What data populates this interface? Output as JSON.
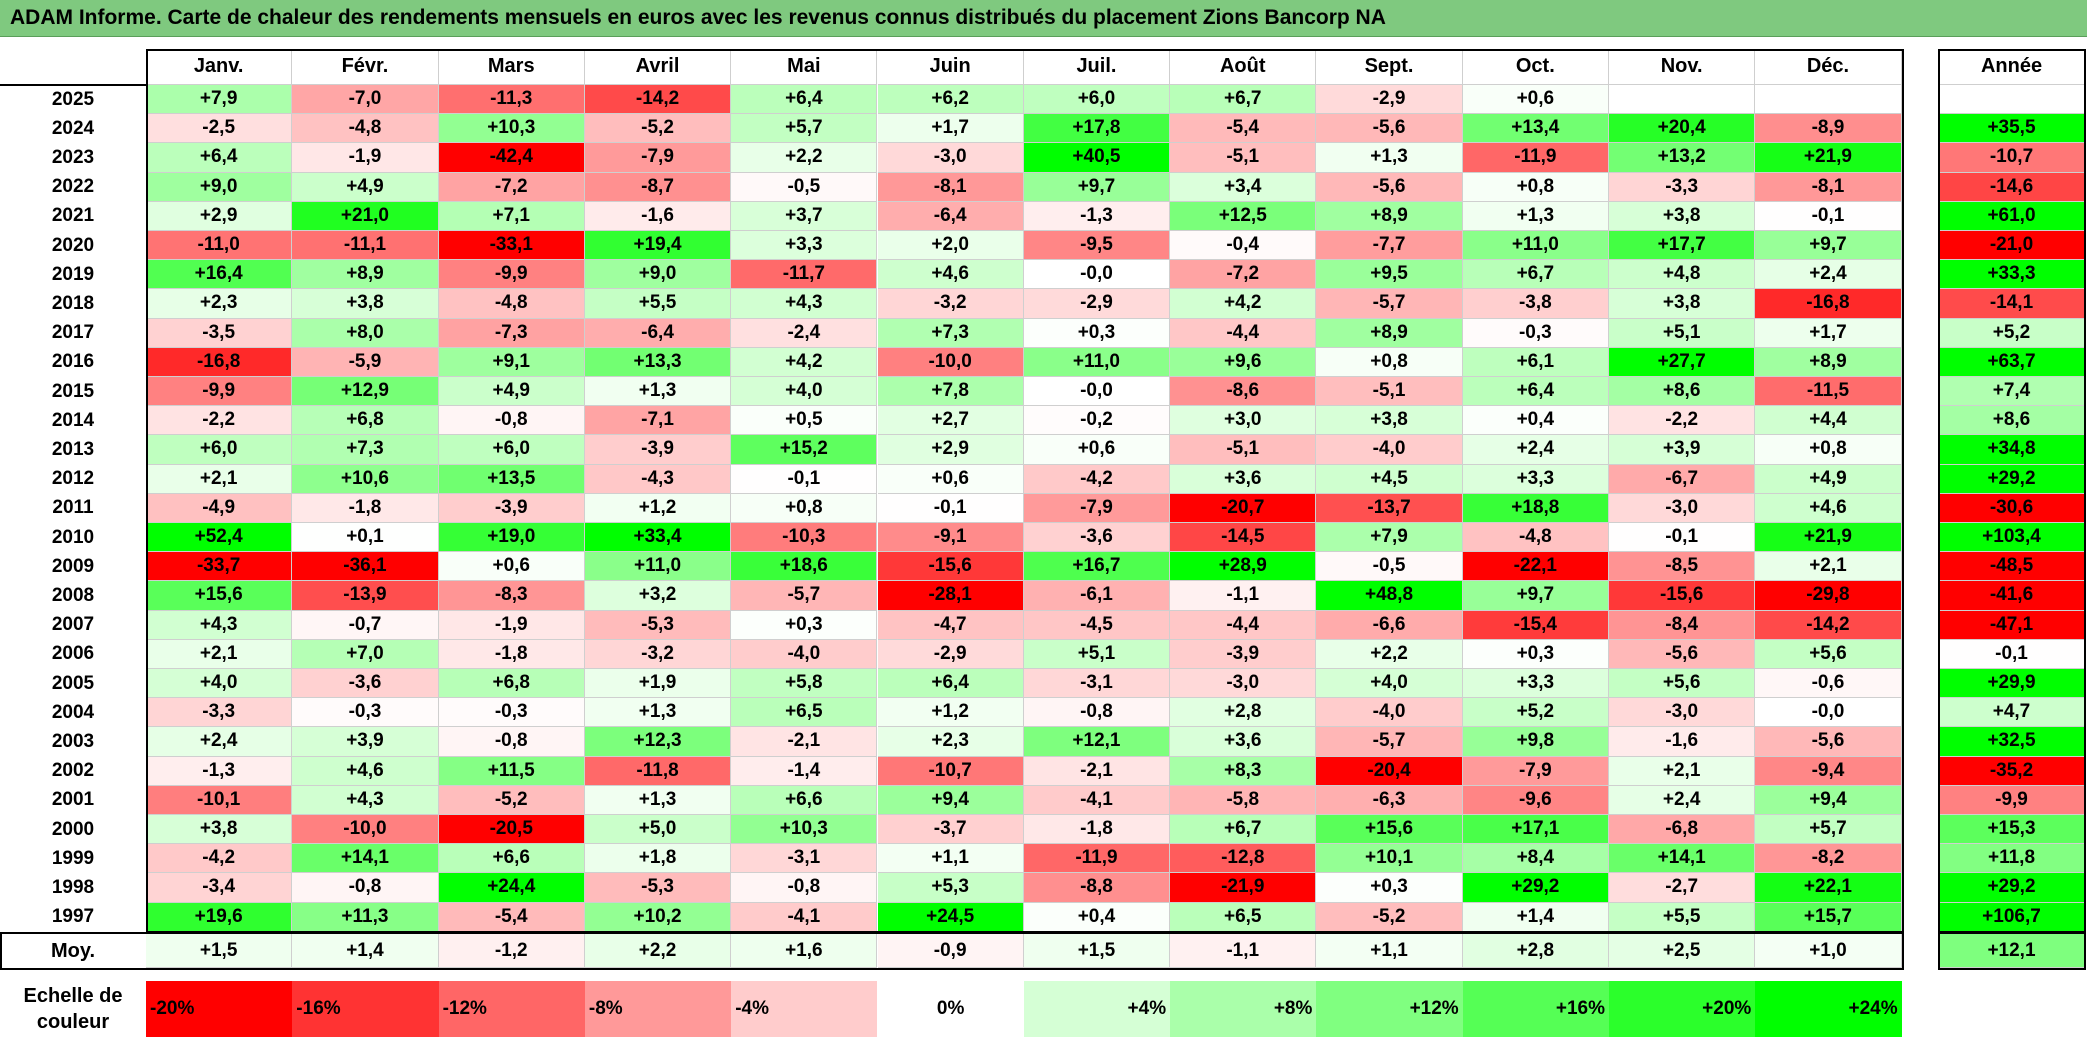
{
  "title": "ADAM Informe. Carte de chaleur des rendements mensuels en euros avec les revenus connus distribués du placement Zions Bancorp NA",
  "chart_data": {
    "type": "heatmap",
    "columns": [
      "Janv.",
      "Févr.",
      "Mars",
      "Avril",
      "Mai",
      "Juin",
      "Juil.",
      "Août",
      "Sept.",
      "Oct.",
      "Nov.",
      "Déc."
    ],
    "annual_header": "Année",
    "rows": [
      {
        "year": "2025",
        "values": [
          "+7,9",
          "-7,0",
          "-11,3",
          "-14,2",
          "+6,4",
          "+6,2",
          "+6,0",
          "+6,7",
          "-2,9",
          "+0,6",
          "",
          ""
        ],
        "annual": ""
      },
      {
        "year": "2024",
        "values": [
          "-2,5",
          "-4,8",
          "+10,3",
          "-5,2",
          "+5,7",
          "+1,7",
          "+17,8",
          "-5,4",
          "-5,6",
          "+13,4",
          "+20,4",
          "-8,9"
        ],
        "annual": "+35,5"
      },
      {
        "year": "2023",
        "values": [
          "+6,4",
          "-1,9",
          "-42,4",
          "-7,9",
          "+2,2",
          "-3,0",
          "+40,5",
          "-5,1",
          "+1,3",
          "-11,9",
          "+13,2",
          "+21,9"
        ],
        "annual": "-10,7"
      },
      {
        "year": "2022",
        "values": [
          "+9,0",
          "+4,9",
          "-7,2",
          "-8,7",
          "-0,5",
          "-8,1",
          "+9,7",
          "+3,4",
          "-5,6",
          "+0,8",
          "-3,3",
          "-8,1"
        ],
        "annual": "-14,6"
      },
      {
        "year": "2021",
        "values": [
          "+2,9",
          "+21,0",
          "+7,1",
          "-1,6",
          "+3,7",
          "-6,4",
          "-1,3",
          "+12,5",
          "+8,9",
          "+1,3",
          "+3,8",
          "-0,1"
        ],
        "annual": "+61,0"
      },
      {
        "year": "2020",
        "values": [
          "-11,0",
          "-11,1",
          "-33,1",
          "+19,4",
          "+3,3",
          "+2,0",
          "-9,5",
          "-0,4",
          "-7,7",
          "+11,0",
          "+17,7",
          "+9,7"
        ],
        "annual": "-21,0"
      },
      {
        "year": "2019",
        "values": [
          "+16,4",
          "+8,9",
          "-9,9",
          "+9,0",
          "-11,7",
          "+4,6",
          "-0,0",
          "-7,2",
          "+9,5",
          "+6,7",
          "+4,8",
          "+2,4"
        ],
        "annual": "+33,3"
      },
      {
        "year": "2018",
        "values": [
          "+2,3",
          "+3,8",
          "-4,8",
          "+5,5",
          "+4,3",
          "-3,2",
          "-2,9",
          "+4,2",
          "-5,7",
          "-3,8",
          "+3,8",
          "-16,8"
        ],
        "annual": "-14,1"
      },
      {
        "year": "2017",
        "values": [
          "-3,5",
          "+8,0",
          "-7,3",
          "-6,4",
          "-2,4",
          "+7,3",
          "+0,3",
          "-4,4",
          "+8,9",
          "-0,3",
          "+5,1",
          "+1,7"
        ],
        "annual": "+5,2"
      },
      {
        "year": "2016",
        "values": [
          "-16,8",
          "-5,9",
          "+9,1",
          "+13,3",
          "+4,2",
          "-10,0",
          "+11,0",
          "+9,6",
          "+0,8",
          "+6,1",
          "+27,7",
          "+8,9"
        ],
        "annual": "+63,7"
      },
      {
        "year": "2015",
        "values": [
          "-9,9",
          "+12,9",
          "+4,9",
          "+1,3",
          "+4,0",
          "+7,8",
          "-0,0",
          "-8,6",
          "-5,1",
          "+6,4",
          "+8,6",
          "-11,5"
        ],
        "annual": "+7,4"
      },
      {
        "year": "2014",
        "values": [
          "-2,2",
          "+6,8",
          "-0,8",
          "-7,1",
          "+0,5",
          "+2,7",
          "-0,2",
          "+3,0",
          "+3,8",
          "+0,4",
          "-2,2",
          "+4,4"
        ],
        "annual": "+8,6"
      },
      {
        "year": "2013",
        "values": [
          "+6,0",
          "+7,3",
          "+6,0",
          "-3,9",
          "+15,2",
          "+2,9",
          "+0,6",
          "-5,1",
          "-4,0",
          "+2,4",
          "+3,9",
          "+0,8"
        ],
        "annual": "+34,8"
      },
      {
        "year": "2012",
        "values": [
          "+2,1",
          "+10,6",
          "+13,5",
          "-4,3",
          "-0,1",
          "+0,6",
          "-4,2",
          "+3,6",
          "+4,5",
          "+3,3",
          "-6,7",
          "+4,9"
        ],
        "annual": "+29,2"
      },
      {
        "year": "2011",
        "values": [
          "-4,9",
          "-1,8",
          "-3,9",
          "+1,2",
          "+0,8",
          "-0,1",
          "-7,9",
          "-20,7",
          "-13,7",
          "+18,8",
          "-3,0",
          "+4,6"
        ],
        "annual": "-30,6"
      },
      {
        "year": "2010",
        "values": [
          "+52,4",
          "+0,1",
          "+19,0",
          "+33,4",
          "-10,3",
          "-9,1",
          "-3,6",
          "-14,5",
          "+7,9",
          "-4,8",
          "-0,1",
          "+21,9"
        ],
        "annual": "+103,4"
      },
      {
        "year": "2009",
        "values": [
          "-33,7",
          "-36,1",
          "+0,6",
          "+11,0",
          "+18,6",
          "-15,6",
          "+16,7",
          "+28,9",
          "-0,5",
          "-22,1",
          "-8,5",
          "+2,1"
        ],
        "annual": "-48,5"
      },
      {
        "year": "2008",
        "values": [
          "+15,6",
          "-13,9",
          "-8,3",
          "+3,2",
          "-5,7",
          "-28,1",
          "-6,1",
          "-1,1",
          "+48,8",
          "+9,7",
          "-15,6",
          "-29,8"
        ],
        "annual": "-41,6"
      },
      {
        "year": "2007",
        "values": [
          "+4,3",
          "-0,7",
          "-1,9",
          "-5,3",
          "+0,3",
          "-4,7",
          "-4,5",
          "-4,4",
          "-6,6",
          "-15,4",
          "-8,4",
          "-14,2"
        ],
        "annual": "-47,1"
      },
      {
        "year": "2006",
        "values": [
          "+2,1",
          "+7,0",
          "-1,8",
          "-3,2",
          "-4,0",
          "-2,9",
          "+5,1",
          "-3,9",
          "+2,2",
          "+0,3",
          "-5,6",
          "+5,6"
        ],
        "annual": "-0,1"
      },
      {
        "year": "2005",
        "values": [
          "+4,0",
          "-3,6",
          "+6,8",
          "+1,9",
          "+5,8",
          "+6,4",
          "-3,1",
          "-3,0",
          "+4,0",
          "+3,3",
          "+5,6",
          "-0,6"
        ],
        "annual": "+29,9"
      },
      {
        "year": "2004",
        "values": [
          "-3,3",
          "-0,3",
          "-0,3",
          "+1,3",
          "+6,5",
          "+1,2",
          "-0,8",
          "+2,8",
          "-4,0",
          "+5,2",
          "-3,0",
          "-0,0"
        ],
        "annual": "+4,7"
      },
      {
        "year": "2003",
        "values": [
          "+2,4",
          "+3,9",
          "-0,8",
          "+12,3",
          "-2,1",
          "+2,3",
          "+12,1",
          "+3,6",
          "-5,7",
          "+9,8",
          "-1,6",
          "-5,6"
        ],
        "annual": "+32,5"
      },
      {
        "year": "2002",
        "values": [
          "-1,3",
          "+4,6",
          "+11,5",
          "-11,8",
          "-1,4",
          "-10,7",
          "-2,1",
          "+8,3",
          "-20,4",
          "-7,9",
          "+2,1",
          "-9,4"
        ],
        "annual": "-35,2"
      },
      {
        "year": "2001",
        "values": [
          "-10,1",
          "+4,3",
          "-5,2",
          "+1,3",
          "+6,6",
          "+9,4",
          "-4,1",
          "-5,8",
          "-6,3",
          "-9,6",
          "+2,4",
          "+9,4"
        ],
        "annual": "-9,9"
      },
      {
        "year": "2000",
        "values": [
          "+3,8",
          "-10,0",
          "-20,5",
          "+5,0",
          "+10,3",
          "-3,7",
          "-1,8",
          "+6,7",
          "+15,6",
          "+17,1",
          "-6,8",
          "+5,7"
        ],
        "annual": "+15,3"
      },
      {
        "year": "1999",
        "values": [
          "-4,2",
          "+14,1",
          "+6,6",
          "+1,8",
          "-3,1",
          "+1,1",
          "-11,9",
          "-12,8",
          "+10,1",
          "+8,4",
          "+14,1",
          "-8,2"
        ],
        "annual": "+11,8"
      },
      {
        "year": "1998",
        "values": [
          "-3,4",
          "-0,8",
          "+24,4",
          "-5,3",
          "-0,8",
          "+5,3",
          "-8,8",
          "-21,9",
          "+0,3",
          "+29,2",
          "-2,7",
          "+22,1"
        ],
        "annual": "+29,2"
      },
      {
        "year": "1997",
        "values": [
          "+19,6",
          "+11,3",
          "-5,4",
          "+10,2",
          "-4,1",
          "+24,5",
          "+0,4",
          "+6,5",
          "-5,2",
          "+1,4",
          "+5,5",
          "+15,7"
        ],
        "annual": "+106,7"
      }
    ],
    "average": {
      "label": "Moy.",
      "values": [
        "+1,5",
        "+1,4",
        "-1,2",
        "+2,2",
        "+1,6",
        "-0,9",
        "+1,5",
        "-1,1",
        "+1,1",
        "+2,8",
        "+2,5",
        "+1,0"
      ],
      "annual": "+12,1"
    },
    "scale": {
      "label_line1": "Echelle de",
      "label_line2": "couleur",
      "steps": [
        "-20%",
        "-16%",
        "-12%",
        "-8%",
        "-4%",
        "0%",
        "+4%",
        "+8%",
        "+12%",
        "+16%",
        "+20%",
        "+24%"
      ],
      "values": [
        -20,
        -16,
        -12,
        -8,
        -4,
        0,
        4,
        8,
        12,
        16,
        20,
        24
      ]
    },
    "colors": {
      "negative_max": "#ff0000",
      "zero": "#ffffff",
      "positive_max": "#00ff00"
    }
  }
}
